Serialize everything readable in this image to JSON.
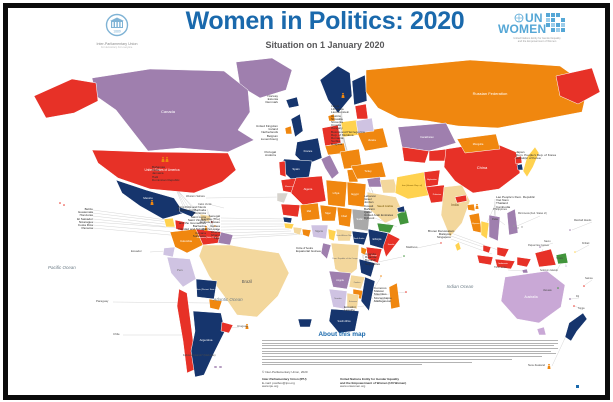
{
  "header": {
    "title": "Women in Politics: 2020",
    "subtitle": "Situation on 1 January 2020",
    "ipu": {
      "year": "1889",
      "name": "Inter-Parliamentary Union",
      "tagline": "For democracy. For everyone."
    },
    "unwomen": {
      "word1": "UN",
      "word2": "WOMEN",
      "tagline1": "United Nations Entity for Gender Equality",
      "tagline2": "and the Empowerment of Women"
    }
  },
  "map": {
    "oceans": {
      "pacific": "Pacific Ocean",
      "atlantic": "Atlantic Ocean",
      "indian": "Indian Ocean"
    },
    "regions": {
      "greenland": {
        "color": "#9f7fae"
      },
      "iceland": {
        "color": "#16356d"
      },
      "canada": {
        "color": "#9f7fae",
        "label": "Canada"
      },
      "alaska": {
        "color": "#e73127"
      },
      "usa": {
        "color": "#e73127",
        "label": "United States of America"
      },
      "mexico": {
        "color": "#16356d",
        "label": "Mexico"
      },
      "guatemala": {
        "color": "#ffd24f"
      },
      "honduras_nicaragua": {
        "color": "#e73127"
      },
      "costa_rica_panama": {
        "color": "#9f7fae"
      },
      "cuba": {
        "color": "#16356d"
      },
      "hispaniola": {
        "color": "#f3d79c"
      },
      "colombia": {
        "color": "#f0870f",
        "label": "Colombia"
      },
      "venezuela": {
        "color": "#e73127",
        "label": "Venezuela (Boliv. Rep. of)"
      },
      "guyana_suriname": {
        "color": "#9f7fae"
      },
      "ecuador": {
        "color": "#cfc3e2"
      },
      "peru": {
        "color": "#cfc3e2",
        "label": "Peru"
      },
      "brazil": {
        "color": "#f3d79c",
        "label": "Brazil"
      },
      "bolivia": {
        "color": "#16356d",
        "label": "Bolivia (Plurinat. State of)"
      },
      "paraguay": {
        "color": "#f0870f"
      },
      "chile": {
        "color": "#e73127"
      },
      "argentina": {
        "color": "#16356d",
        "label": "Argentina"
      },
      "uruguay": {
        "color": "#e73127"
      },
      "falkland1": {
        "color": "#9f7fae"
      },
      "falkland2": {
        "color": "#9f7fae"
      },
      "uk": {
        "color": "#16356d"
      },
      "ireland": {
        "color": "#f0870f"
      },
      "scandinavia": {
        "color": "#16356d"
      },
      "finland": {
        "color": "#16356d"
      },
      "baltics": {
        "color": "#e73127"
      },
      "denmark": {
        "color": "#f0870f"
      },
      "france": {
        "color": "#16356d",
        "label": "France"
      },
      "iberia": {
        "color": "#16356d",
        "label": "Spain"
      },
      "portugal": {
        "color": "#e73127"
      },
      "germany": {
        "color": "#e73127"
      },
      "poland": {
        "color": "#ffd24f"
      },
      "central_europe": {
        "color": "#f0870f"
      },
      "italy": {
        "color": "#9f7fae"
      },
      "balkans": {
        "color": "#f0870f"
      },
      "greece": {
        "color": "#f0870f"
      },
      "ukraine": {
        "color": "#f0870f",
        "label": "Ukraine"
      },
      "belarus": {
        "color": "#cfc3e2"
      },
      "russia": {
        "color": "#f0870f",
        "label": "Russian Federation"
      },
      "chukotka": {
        "color": "#e73127"
      },
      "kazakhstan": {
        "color": "#9f7fae",
        "label": "Kazakhstan"
      },
      "central_asia1": {
        "color": "#e73127"
      },
      "central_asia2": {
        "color": "#e73127"
      },
      "turkey": {
        "color": "#f0870f",
        "label": "Turkey"
      },
      "syria": {
        "color": "#9f7fae"
      },
      "iraq": {
        "color": "#f3d79c"
      },
      "iran": {
        "color": "#ffd24f",
        "label": "Iran (Islamic Rep. of)"
      },
      "saudi": {
        "color": "#f3d79c",
        "label": "Saudi Arabia"
      },
      "yemen": {
        "color": "#42953c"
      },
      "oman": {
        "color": "#42953c"
      },
      "uae": {
        "color": "#16356d"
      },
      "morocco": {
        "color": "#e73127",
        "label": "Morocco"
      },
      "w_sahara": {
        "color": "#d6d3cd"
      },
      "algeria": {
        "color": "#e73127",
        "label": "Algeria"
      },
      "libya": {
        "color": "#f0870f",
        "label": "Libya"
      },
      "egypt": {
        "color": "#f0870f",
        "label": "Egypt"
      },
      "mauritania": {
        "color": "#e73127"
      },
      "mali": {
        "color": "#f0870f",
        "label": "Mali"
      },
      "niger": {
        "color": "#f0870f",
        "label": "Niger"
      },
      "chad": {
        "color": "#f0870f",
        "label": "Chad"
      },
      "sudan": {
        "color": "#a9a9a9",
        "label": "Sudan"
      },
      "senegal": {
        "color": "#16356d"
      },
      "guinea": {
        "color": "#ffd24f"
      },
      "cote_divoire": {
        "color": "#f3d79c"
      },
      "ghana_togo": {
        "color": "#f0870f"
      },
      "nigeria": {
        "color": "#cfc3e2",
        "label": "Nigeria"
      },
      "cameroon": {
        "color": "#ffd24f"
      },
      "car": {
        "color": "#f3d79c",
        "label": "Central African Rep."
      },
      "south_sudan": {
        "color": "#16356d",
        "label": "South Sudan"
      },
      "ethiopia": {
        "color": "#16356d",
        "label": "Ethiopia"
      },
      "somalia": {
        "color": "#e73127",
        "label": "Somalia"
      },
      "kenya": {
        "color": "#e73127",
        "label": "Kenya"
      },
      "uganda": {
        "color": "#f0870f"
      },
      "drc": {
        "color": "#f3d79c",
        "label": "Dem. Republic of the Congo"
      },
      "congo_gabon": {
        "color": "#9f7fae"
      },
      "tanzania": {
        "color": "#16356d"
      },
      "angola": {
        "color": "#9f7fae",
        "label": "Angola"
      },
      "zambia": {
        "color": "#f3d79c",
        "label": "Zambia"
      },
      "zimbabwe": {
        "color": "#f0870f"
      },
      "mozambique": {
        "color": "#16356d"
      },
      "namibia": {
        "color": "#cfc3e2",
        "label": "Namibia"
      },
      "botswana": {
        "color": "#f3d79c",
        "label": "Botswana"
      },
      "south_africa": {
        "color": "#16356d",
        "label": "South Africa"
      },
      "madagascar": {
        "color": "#f0870f"
      },
      "afghanistan": {
        "color": "#e73127",
        "label": "Afghanistan"
      },
      "pakistan": {
        "color": "#e73127",
        "label": "Pakistan"
      },
      "india": {
        "color": "#f3d79c",
        "label": "India"
      },
      "nepal": {
        "color": "#e73127"
      },
      "bangladesh": {
        "color": "#f0870f"
      },
      "sri_lanka": {
        "color": "#ffd24f"
      },
      "china": {
        "color": "#e73127",
        "label": "China"
      },
      "mongolia": {
        "color": "#f0870f",
        "label": "Mongolia"
      },
      "korea_n": {
        "color": "#e73127"
      },
      "korea_s": {
        "color": "#16356d"
      },
      "japan": {
        "color": "#ffd24f"
      },
      "myanmar": {
        "color": "#f0870f",
        "label": "Myanmar"
      },
      "thailand": {
        "color": "#ffd24f"
      },
      "indochina": {
        "color": "#9f7fae"
      },
      "malaysia_pen": {
        "color": "#e73127"
      },
      "borneo": {
        "color": "#e73127"
      },
      "philippines": {
        "color": "#9f7fae"
      },
      "indonesia1": {
        "color": "#e73127",
        "label": "Indonesia"
      },
      "indonesia2": {
        "color": "#e73127"
      },
      "indonesia3": {
        "color": "#e73127"
      },
      "timor": {
        "color": "#9f7fae"
      },
      "png": {
        "color": "#e73127"
      },
      "solomon": {
        "color": "#42953c"
      },
      "australia": {
        "color": "#c9a8d6",
        "label": "Australia"
      },
      "tasmania": {
        "color": "#c9a8d6"
      },
      "nz": {
        "color": "#16356d"
      },
      "southern_islands": {
        "color": "#16356d"
      }
    },
    "side_labels": {
      "ecuador": "Ecuador",
      "paraguay": "Paraguay",
      "chile": "Chile",
      "uruguay": "Uruguay",
      "falklands": "Falkland Islands* (Malvinas)",
      "western_sahara": "Western Sahara",
      "cabo_verde": "Cabo Verde",
      "maldives": "Maldives",
      "philippines": "Philippines",
      "papua_new_guinea": "Papua New Guinea",
      "timor_leste": "Timor-Leste",
      "new_zealand": "New Zealand",
      "micronesia": "Micronesia (Fed. States of)",
      "marshall_islands": "Marshall Islands",
      "palau": "Palau",
      "nauru": "Nauru",
      "kiribati": "Kiribati",
      "tuvalu": "Tuvalu",
      "solomon_islands": "Solomon Islands",
      "samoa": "Samoa",
      "vanuatu": "Vanuatu",
      "fiji": "Fiji",
      "tonga": "Tonga"
    },
    "clusters": {
      "central_america": [
        "Belize",
        "Guatemala",
        "Honduras",
        "El Salvador",
        "Nicaragua",
        "Costa Rica",
        "Panama"
      ],
      "caribbean": [
        "Bahamas",
        "Cuba",
        "Jamaica",
        "Haiti",
        "Dominican Republic"
      ],
      "lesser_antilles": [
        "Saint Kitts and Nevis",
        "Antigua and Barbuda",
        "Dominica",
        "Saint Lucia",
        "Saint Vincent",
        "and the Grenadines",
        "Barbados",
        "Trinidad and Tobago",
        "Guyana",
        "Suriname"
      ],
      "west_africa": [
        "Senegal",
        "Gambia (The)",
        "Guinea-Bissau",
        "Guinea",
        "Sierra Leone",
        "Liberia",
        "Ghana",
        "Togo"
      ],
      "west_africa2": [
        "Côte d'Ivoire",
        "Equatorial Guinea"
      ],
      "nordic": [
        "Norway",
        "Estonia",
        "Denmark"
      ],
      "west_europe": [
        "United Kingdom",
        "Ireland",
        "Netherlands",
        "Belgium",
        "Luxembourg"
      ],
      "iberia_labels": [
        "Portugal",
        "Andorra"
      ],
      "europe_fan": [
        "Latvia",
        "Lithuania",
        "Liechtenstein",
        "Austria",
        "Slovakia",
        "Slovenia",
        "Croatia",
        "Hungary",
        "Bosnia and Herzegovina",
        "Rep. of Moldova",
        "Romania",
        "Serbia",
        "Bulgaria"
      ],
      "gulf": [
        "Lebanon",
        "Israel",
        "Jordan",
        "Kuwait",
        "Bahrain",
        "Qatar",
        "United Arab Emirates",
        "Djibouti"
      ],
      "east_africa": [
        "Uganda",
        "Rwanda",
        "Burundi",
        "Seychelles"
      ],
      "se_africa": [
        "Comoros",
        "Malawi",
        "Mauritius",
        "Mozambique",
        "Madagascar"
      ],
      "southern_africa": [
        "Eswatini",
        "Lesotho"
      ],
      "east_asia": [
        "Japan",
        "Dem. People's Rep. of Korea",
        "Republic of Korea"
      ],
      "se_asia": [
        "Lao People's Dem. Republic",
        "Viet Nam",
        "Thailand",
        "Cambodia"
      ],
      "sea2": [
        "Brunei Darussalam",
        "Malaysia",
        "Singapore"
      ]
    }
  },
  "about": {
    "heading": "About this map"
  },
  "footer": {
    "copyright": "© Inter-Parliamentary Union, 2020",
    "ipu_line1": "Inter-Parliamentary Union (IPU)",
    "ipu_line2": "E-mail: postbox@ipu.org",
    "ipu_line3": "www.ipu.org",
    "unw_line1": "United Nations Entity for Gender Equality",
    "unw_line2": "and the Empowerment of Women (UN Women)",
    "unw_line3": "www.unwomen.org"
  }
}
